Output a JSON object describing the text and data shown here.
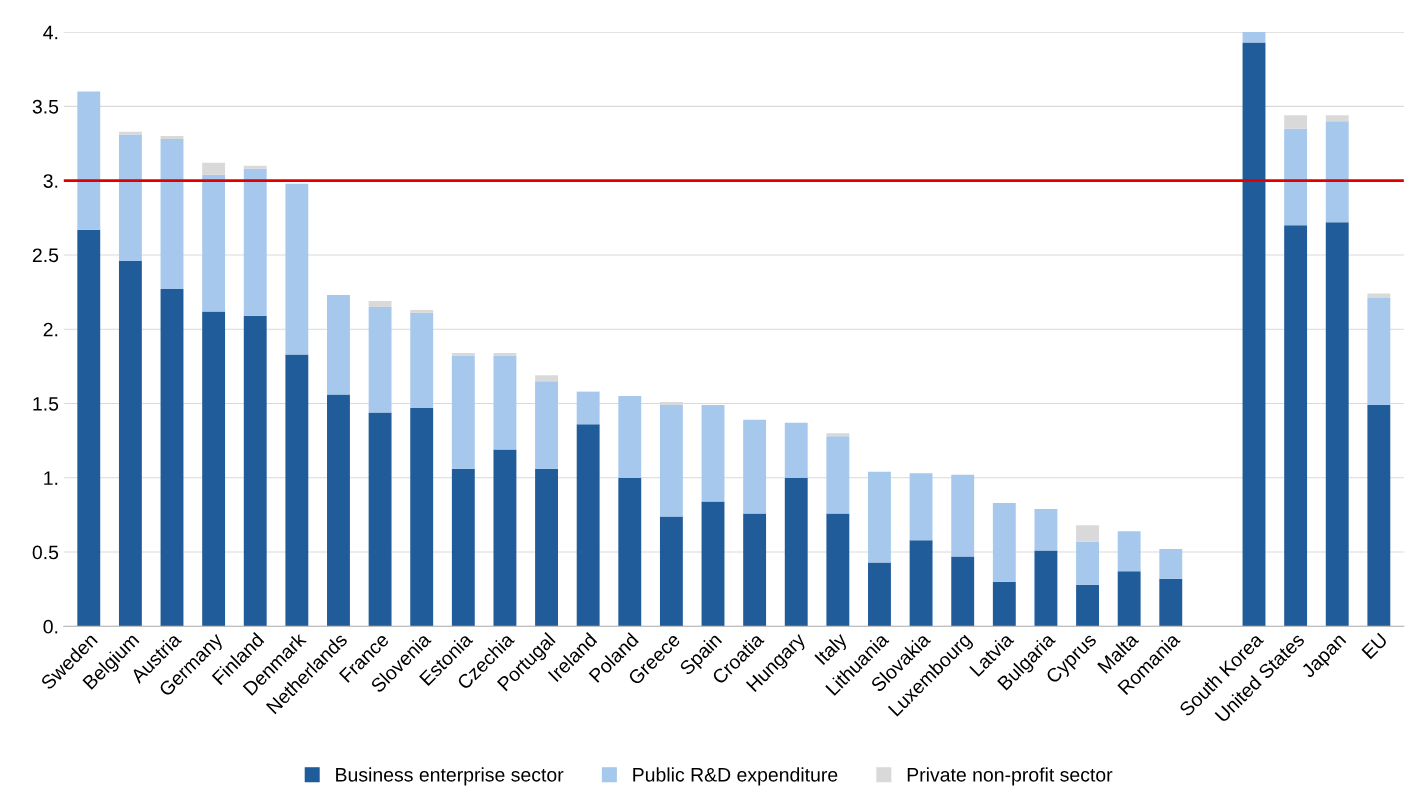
{
  "chart_data": {
    "type": "bar",
    "stacked": true,
    "categories": [
      "Sweden",
      "Belgium",
      "Austria",
      "Germany",
      "Finland",
      "Denmark",
      "Netherlands",
      "France",
      "Slovenia",
      "Estonia",
      "Czechia",
      "Portugal",
      "Ireland",
      "Poland",
      "Greece",
      "Spain",
      "Croatia",
      "Hungary",
      "Italy",
      "Lithuania",
      "Slovakia",
      "Luxembourg",
      "Latvia",
      "Bulgaria",
      "Cyprus",
      "Malta",
      "Romania",
      null,
      "South Korea",
      "United States",
      "Japan",
      "EU"
    ],
    "series": [
      {
        "name": "Business enterprise sector",
        "color": "#1f5c99",
        "values": [
          2.67,
          2.46,
          2.27,
          2.12,
          2.09,
          1.83,
          1.56,
          1.44,
          1.47,
          1.06,
          1.19,
          1.06,
          1.36,
          1.0,
          0.74,
          0.84,
          0.76,
          1.0,
          0.76,
          0.43,
          0.58,
          0.47,
          0.3,
          0.51,
          0.28,
          0.37,
          0.32,
          null,
          3.93,
          2.7,
          2.72,
          1.49
        ]
      },
      {
        "name": "Public R&D expenditure",
        "color": "#a5c8ec",
        "values": [
          0.93,
          0.85,
          1.01,
          0.92,
          0.99,
          1.15,
          0.67,
          0.71,
          0.64,
          0.76,
          0.63,
          0.59,
          0.22,
          0.55,
          0.75,
          0.65,
          0.63,
          0.37,
          0.52,
          0.61,
          0.45,
          0.55,
          0.53,
          0.28,
          0.29,
          0.27,
          0.2,
          null,
          0.07,
          0.65,
          0.68,
          0.72
        ]
      },
      {
        "name": "Private non-profit sector",
        "color": "#d9d9d9",
        "values": [
          null,
          0.02,
          0.02,
          0.08,
          0.02,
          null,
          null,
          0.04,
          0.02,
          0.02,
          0.02,
          0.04,
          null,
          null,
          0.02,
          null,
          null,
          null,
          0.02,
          null,
          null,
          null,
          null,
          null,
          0.11,
          null,
          null,
          null,
          null,
          0.09,
          0.04,
          0.03
        ]
      }
    ],
    "ylim": [
      0,
      4
    ],
    "yticks": [
      {
        "value": 0,
        "label": "0."
      },
      0.5,
      {
        "value": 1,
        "label": "1."
      },
      1.5,
      {
        "value": 2,
        "label": "2."
      },
      2.5,
      {
        "value": 3,
        "label": "3."
      },
      3.5,
      {
        "value": 4,
        "label": "4."
      }
    ],
    "ref_lines": [
      {
        "axis": "y",
        "value": 3,
        "color": "#e00000"
      }
    ],
    "grid": "y",
    "legend": "bottom"
  }
}
